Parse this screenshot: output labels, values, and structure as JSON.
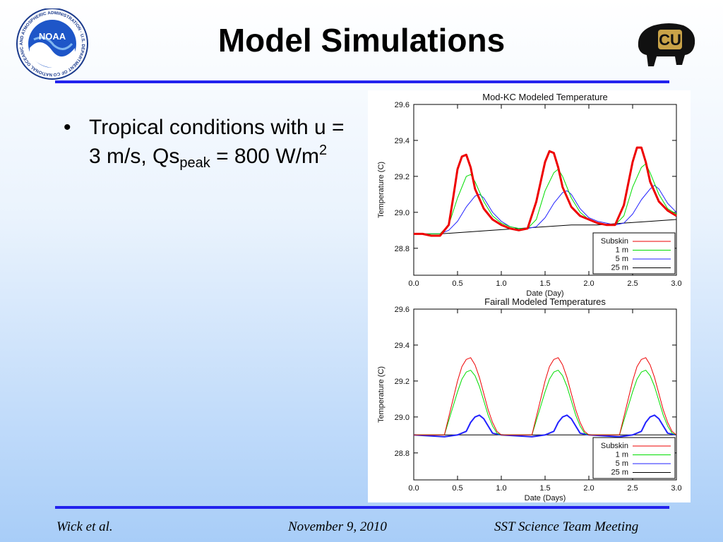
{
  "slide": {
    "title": "Model Simulations",
    "noaa_logo_text": "NOAA",
    "noaa_ring_text": "NATIONAL OCEANIC AND ATMOSPHERIC ADMINISTRATION · U.S. DEPARTMENT OF COMMERCE",
    "cu_logo_text": "CU",
    "bullet": {
      "t1": "Tropical conditions with u = 3 m/s, Qs",
      "sub": "peak",
      "t2": " = 800 W/m",
      "sup": "2"
    },
    "footer": {
      "left": "Wick et al.",
      "center": "November 9, 2010",
      "right": "SST Science Team Meeting"
    }
  },
  "colors": {
    "rule": "#2222ee",
    "subskin": "#ee0000",
    "m1": "#00dd00",
    "m5": "#2222ff",
    "m25": "#000000"
  },
  "chart_data": [
    {
      "type": "line",
      "title": "Mod-KC Modeled Temperature",
      "xlabel": "Date (Day)",
      "ylabel": "Temperature (C)",
      "xlim": [
        0.0,
        3.0
      ],
      "ylim": [
        28.65,
        29.6
      ],
      "xticks": [
        "0.0",
        "0.5",
        "1.0",
        "1.5",
        "2.0",
        "2.5",
        "3.0"
      ],
      "yticks": [
        "28.8",
        "29.0",
        "29.2",
        "29.4",
        "29.6"
      ],
      "legend": "bottom-right",
      "series": [
        {
          "name": "Subskin",
          "color": "#ee0000",
          "x": [
            0,
            0.1,
            0.2,
            0.3,
            0.4,
            0.45,
            0.5,
            0.55,
            0.6,
            0.65,
            0.7,
            0.8,
            0.9,
            1.0,
            1.1,
            1.2,
            1.3,
            1.4,
            1.5,
            1.55,
            1.6,
            1.65,
            1.7,
            1.8,
            1.9,
            2.0,
            2.1,
            2.2,
            2.3,
            2.4,
            2.5,
            2.55,
            2.6,
            2.65,
            2.7,
            2.8,
            2.9,
            3.0
          ],
          "y": [
            28.88,
            28.88,
            28.87,
            28.87,
            28.93,
            29.08,
            29.24,
            29.31,
            29.32,
            29.25,
            29.13,
            29.02,
            28.96,
            28.93,
            28.91,
            28.9,
            28.91,
            29.06,
            29.28,
            29.34,
            29.33,
            29.25,
            29.14,
            29.03,
            28.98,
            28.96,
            28.94,
            28.93,
            28.93,
            29.04,
            29.28,
            29.36,
            29.36,
            29.28,
            29.17,
            29.06,
            29.01,
            28.98
          ]
        },
        {
          "name": "1 m",
          "color": "#00dd00",
          "x": [
            0,
            0.3,
            0.4,
            0.5,
            0.6,
            0.65,
            0.7,
            0.8,
            0.9,
            1.0,
            1.1,
            1.2,
            1.3,
            1.4,
            1.5,
            1.6,
            1.65,
            1.7,
            1.8,
            1.9,
            2.0,
            2.1,
            2.2,
            2.3,
            2.4,
            2.5,
            2.6,
            2.65,
            2.7,
            2.8,
            2.9,
            3.0
          ],
          "y": [
            28.88,
            28.88,
            28.93,
            29.08,
            29.2,
            29.21,
            29.17,
            29.06,
            28.98,
            28.94,
            28.92,
            28.91,
            28.91,
            28.96,
            29.12,
            29.22,
            29.24,
            29.2,
            29.08,
            29.0,
            28.96,
            28.94,
            28.93,
            28.93,
            28.98,
            29.14,
            29.25,
            29.27,
            29.22,
            29.1,
            29.02,
            28.99
          ]
        },
        {
          "name": "5 m",
          "color": "#2222ff",
          "x": [
            0,
            0.3,
            0.4,
            0.5,
            0.6,
            0.7,
            0.75,
            0.8,
            0.9,
            1.0,
            1.1,
            1.2,
            1.3,
            1.4,
            1.5,
            1.6,
            1.7,
            1.75,
            1.8,
            1.9,
            2.0,
            2.1,
            2.2,
            2.3,
            2.4,
            2.5,
            2.6,
            2.7,
            2.75,
            2.8,
            2.9,
            3.0
          ],
          "y": [
            28.88,
            28.88,
            28.9,
            28.95,
            29.03,
            29.09,
            29.1,
            29.08,
            29.0,
            28.95,
            28.92,
            28.91,
            28.91,
            28.92,
            28.97,
            29.05,
            29.11,
            29.12,
            29.1,
            29.02,
            28.97,
            28.95,
            28.94,
            28.93,
            28.94,
            28.99,
            29.07,
            29.13,
            29.15,
            29.13,
            29.05,
            29.0
          ]
        },
        {
          "name": "25 m",
          "color": "#000000",
          "x": [
            0,
            0.3,
            0.6,
            0.9,
            1.2,
            1.5,
            1.8,
            2.1,
            2.4,
            2.7,
            3.0
          ],
          "y": [
            28.88,
            28.88,
            28.89,
            28.9,
            28.91,
            28.92,
            28.93,
            28.93,
            28.94,
            28.95,
            28.96
          ]
        }
      ]
    },
    {
      "type": "line",
      "title": "Fairall Modeled Temperatures",
      "xlabel": "Date (Days)",
      "ylabel": "Temperature (C)",
      "xlim": [
        0.0,
        3.0
      ],
      "ylim": [
        28.65,
        29.6
      ],
      "xticks": [
        "0.0",
        "0.5",
        "1.0",
        "1.5",
        "2.0",
        "2.5",
        "3.0"
      ],
      "yticks": [
        "28.8",
        "29.0",
        "29.2",
        "29.4",
        "29.6"
      ],
      "legend": "bottom-right",
      "series": [
        {
          "name": "Subskin",
          "color": "#ee0000",
          "x": [
            0,
            0.35,
            0.4,
            0.45,
            0.5,
            0.55,
            0.6,
            0.65,
            0.7,
            0.75,
            0.8,
            0.85,
            0.9,
            0.95,
            1.0,
            1.35,
            1.4,
            1.45,
            1.5,
            1.55,
            1.6,
            1.65,
            1.7,
            1.75,
            1.8,
            1.85,
            1.9,
            1.95,
            2.0,
            2.35,
            2.4,
            2.45,
            2.5,
            2.55,
            2.6,
            2.65,
            2.7,
            2.75,
            2.8,
            2.85,
            2.9,
            2.95,
            3.0
          ],
          "y": [
            28.9,
            28.9,
            29.0,
            29.1,
            29.2,
            29.28,
            29.32,
            29.33,
            29.29,
            29.22,
            29.13,
            29.04,
            28.97,
            28.92,
            28.9,
            28.9,
            29.0,
            29.1,
            29.2,
            29.28,
            29.32,
            29.33,
            29.29,
            29.22,
            29.13,
            29.04,
            28.97,
            28.92,
            28.9,
            28.9,
            29.0,
            29.1,
            29.2,
            29.28,
            29.32,
            29.33,
            29.29,
            29.22,
            29.13,
            29.04,
            28.97,
            28.92,
            28.9
          ]
        },
        {
          "name": "1 m",
          "color": "#00dd00",
          "x": [
            0,
            0.35,
            0.4,
            0.45,
            0.5,
            0.55,
            0.6,
            0.65,
            0.7,
            0.75,
            0.8,
            0.85,
            0.9,
            0.95,
            1.0,
            1.35,
            1.4,
            1.45,
            1.5,
            1.55,
            1.6,
            1.65,
            1.7,
            1.75,
            1.8,
            1.85,
            1.9,
            1.95,
            2.0,
            2.35,
            2.4,
            2.45,
            2.5,
            2.55,
            2.6,
            2.65,
            2.7,
            2.75,
            2.8,
            2.85,
            2.9,
            2.95,
            3.0
          ],
          "y": [
            28.9,
            28.9,
            28.98,
            29.06,
            29.14,
            29.21,
            29.25,
            29.26,
            29.23,
            29.17,
            29.09,
            29.01,
            28.95,
            28.91,
            28.9,
            28.9,
            28.98,
            29.06,
            29.14,
            29.21,
            29.25,
            29.26,
            29.23,
            29.17,
            29.09,
            29.01,
            28.95,
            28.91,
            28.9,
            28.9,
            28.98,
            29.06,
            29.14,
            29.21,
            29.25,
            29.26,
            29.23,
            29.17,
            29.09,
            29.01,
            28.95,
            28.91,
            28.9
          ]
        },
        {
          "name": "5 m",
          "color": "#2222ff",
          "x": [
            0,
            0.35,
            0.5,
            0.6,
            0.65,
            0.7,
            0.75,
            0.8,
            0.85,
            0.9,
            1.0,
            1.35,
            1.5,
            1.6,
            1.65,
            1.7,
            1.75,
            1.8,
            1.85,
            1.9,
            2.0,
            2.35,
            2.5,
            2.6,
            2.65,
            2.7,
            2.75,
            2.8,
            2.85,
            2.9,
            3.0
          ],
          "y": [
            28.9,
            28.89,
            28.9,
            28.92,
            28.97,
            29.0,
            29.01,
            28.99,
            28.95,
            28.91,
            28.9,
            28.89,
            28.9,
            28.92,
            28.97,
            29.0,
            29.01,
            28.99,
            28.95,
            28.91,
            28.9,
            28.89,
            28.9,
            28.92,
            28.97,
            29.0,
            29.01,
            28.99,
            28.95,
            28.91,
            28.9
          ]
        },
        {
          "name": "25 m",
          "color": "#000000",
          "x": [
            0,
            3.0
          ],
          "y": [
            28.9,
            28.9
          ]
        }
      ]
    }
  ]
}
